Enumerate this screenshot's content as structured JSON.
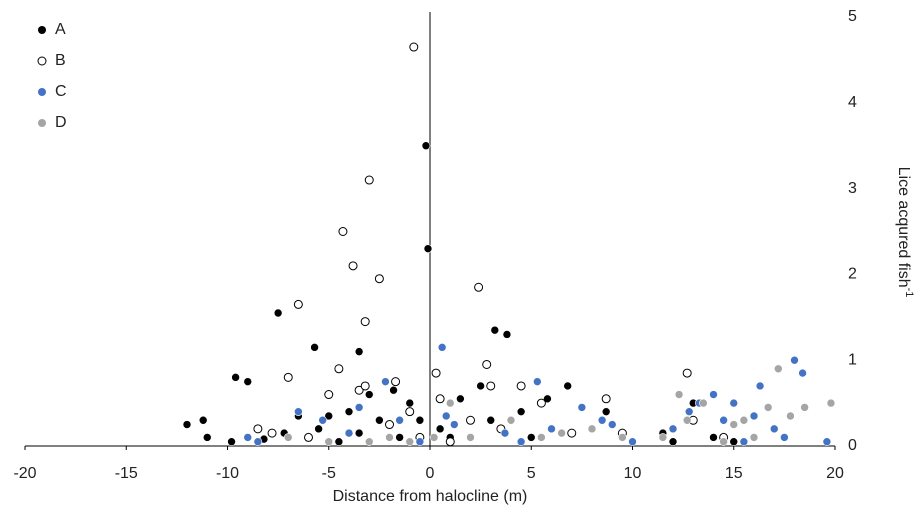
{
  "chart_data": {
    "type": "scatter",
    "xlabel": "Distance from halocline (m)",
    "ylabel": "Lice acqured fish",
    "ylabel_sup": "-1",
    "xlim": [
      -20,
      20
    ],
    "ylim": [
      0,
      5
    ],
    "xticks": [
      -20,
      -15,
      -10,
      -5,
      0,
      5,
      10,
      15,
      20
    ],
    "yticks": [
      0,
      1,
      2,
      3,
      4,
      5
    ],
    "legend": "upper left",
    "series": [
      {
        "name": "A",
        "color": "#000000",
        "filled": true,
        "x": [
          -12,
          -11.2,
          -11,
          -9.8,
          -9.6,
          -9,
          -8.2,
          -7.5,
          -7.2,
          -6.5,
          -5.7,
          -5.5,
          -5,
          -4.5,
          -4,
          -3.5,
          -3.5,
          -3,
          -2.5,
          -1.8,
          -1.5,
          -1,
          -0.5,
          -0.2,
          -0.1,
          0.5,
          1,
          1.5,
          2.5,
          3,
          3.2,
          3.8,
          4.5,
          5,
          5.8,
          6.8,
          8.7,
          9.5,
          11.5,
          12,
          13,
          14,
          15
        ],
        "values": [
          0.25,
          0.3,
          0.1,
          0.05,
          0.8,
          0.75,
          0.08,
          1.55,
          0.15,
          0.35,
          1.15,
          0.2,
          0.35,
          0.05,
          0.4,
          1.1,
          0.15,
          0.6,
          0.3,
          0.65,
          0.1,
          0.5,
          0.3,
          3.5,
          2.3,
          0.2,
          0.1,
          0.55,
          0.7,
          0.3,
          1.35,
          1.3,
          0.4,
          0.1,
          0.55,
          0.7,
          0.4,
          0.1,
          0.15,
          0.05,
          0.5,
          0.1,
          0.05
        ]
      },
      {
        "name": "B",
        "color": "#000000",
        "filled": false,
        "x": [
          -0.8,
          -3,
          -4.3,
          -3.8,
          -2.5,
          -6.5,
          -3.2,
          2.4,
          -4.5,
          -7,
          -3.5,
          -3.2,
          -1.7,
          0.3,
          2.8,
          3,
          4.5,
          -8.5,
          -7.8,
          -6,
          -5,
          -2,
          -1,
          -0.5,
          0.5,
          1,
          2,
          3.5,
          5.5,
          7,
          8.7,
          9.5,
          12.7,
          13,
          14.5
        ],
        "values": [
          4.65,
          3.1,
          2.5,
          2.1,
          1.95,
          1.65,
          1.45,
          1.85,
          0.9,
          0.8,
          0.65,
          0.7,
          0.75,
          0.85,
          0.95,
          0.7,
          0.7,
          0.2,
          0.15,
          0.1,
          0.6,
          0.25,
          0.4,
          0.1,
          0.55,
          0.05,
          0.3,
          0.2,
          0.5,
          0.15,
          0.55,
          0.15,
          0.85,
          0.3,
          0.1
        ]
      },
      {
        "name": "C",
        "color": "#4472c4",
        "filled": true,
        "x": [
          0.6,
          -2.2,
          5.3,
          -3.5,
          -6.5,
          -9,
          -8.5,
          -5.3,
          -4,
          -1.5,
          -0.5,
          0.8,
          1.2,
          2,
          3.7,
          4.5,
          6,
          7.5,
          8.5,
          9,
          10,
          12,
          12.8,
          13.3,
          14,
          14.5,
          15,
          15.5,
          16,
          16.3,
          17,
          17.5,
          18,
          18.4,
          19.6
        ],
        "values": [
          1.15,
          0.75,
          0.75,
          0.45,
          0.4,
          0.1,
          0.05,
          0.3,
          0.15,
          0.3,
          0.05,
          0.35,
          0.25,
          0.1,
          0.15,
          0.05,
          0.2,
          0.45,
          0.3,
          0.25,
          0.05,
          0.2,
          0.4,
          0.5,
          0.6,
          0.3,
          0.5,
          0.05,
          0.35,
          0.7,
          0.2,
          0.1,
          1.0,
          0.85,
          0.05
        ]
      },
      {
        "name": "D",
        "color": "#a5a5a5",
        "filled": true,
        "x": [
          -7,
          -5,
          -3,
          -2,
          -1,
          0.2,
          1,
          2,
          4,
          5.5,
          6.5,
          8,
          9.5,
          11.5,
          12.3,
          12.7,
          13.5,
          14.5,
          15,
          15.5,
          16,
          16.7,
          17.2,
          17.8,
          18.5,
          19.8
        ],
        "values": [
          0.1,
          0.05,
          0.05,
          0.1,
          0.05,
          0.1,
          0.5,
          0.1,
          0.3,
          0.1,
          0.15,
          0.2,
          0.1,
          0.1,
          0.6,
          0.3,
          0.5,
          0.05,
          0.25,
          0.3,
          0.1,
          0.45,
          0.9,
          0.35,
          0.45,
          0.5
        ]
      }
    ]
  }
}
